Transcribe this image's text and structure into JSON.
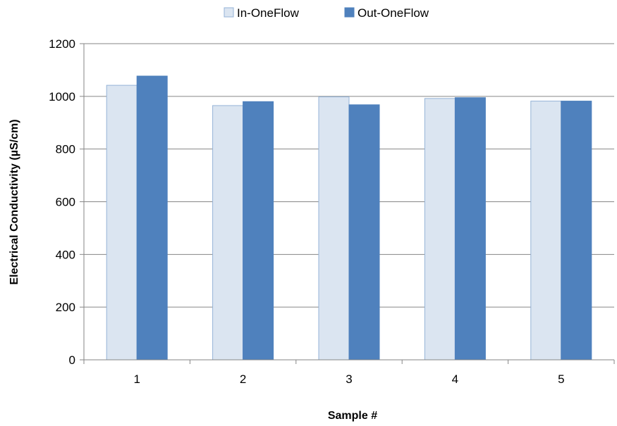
{
  "chart_data": {
    "type": "bar",
    "title": "",
    "xlabel": "Sample #",
    "ylabel": "Electrical Conductivity (µS/cm)",
    "categories": [
      "1",
      "2",
      "3",
      "4",
      "5"
    ],
    "series": [
      {
        "name": "In-OneFlow",
        "color": "#dbe5f1",
        "border": "#95b3d7",
        "values": [
          1042,
          965,
          998,
          992,
          982
        ]
      },
      {
        "name": "Out-OneFlow",
        "color": "#4f81bd",
        "border": "#4f81bd",
        "values": [
          1077,
          980,
          968,
          995,
          982
        ]
      }
    ],
    "ylim": [
      0,
      1200
    ],
    "yticks": [
      0,
      200,
      400,
      600,
      800,
      1000,
      1200
    ],
    "grid": true,
    "legend_position": "top-center"
  }
}
